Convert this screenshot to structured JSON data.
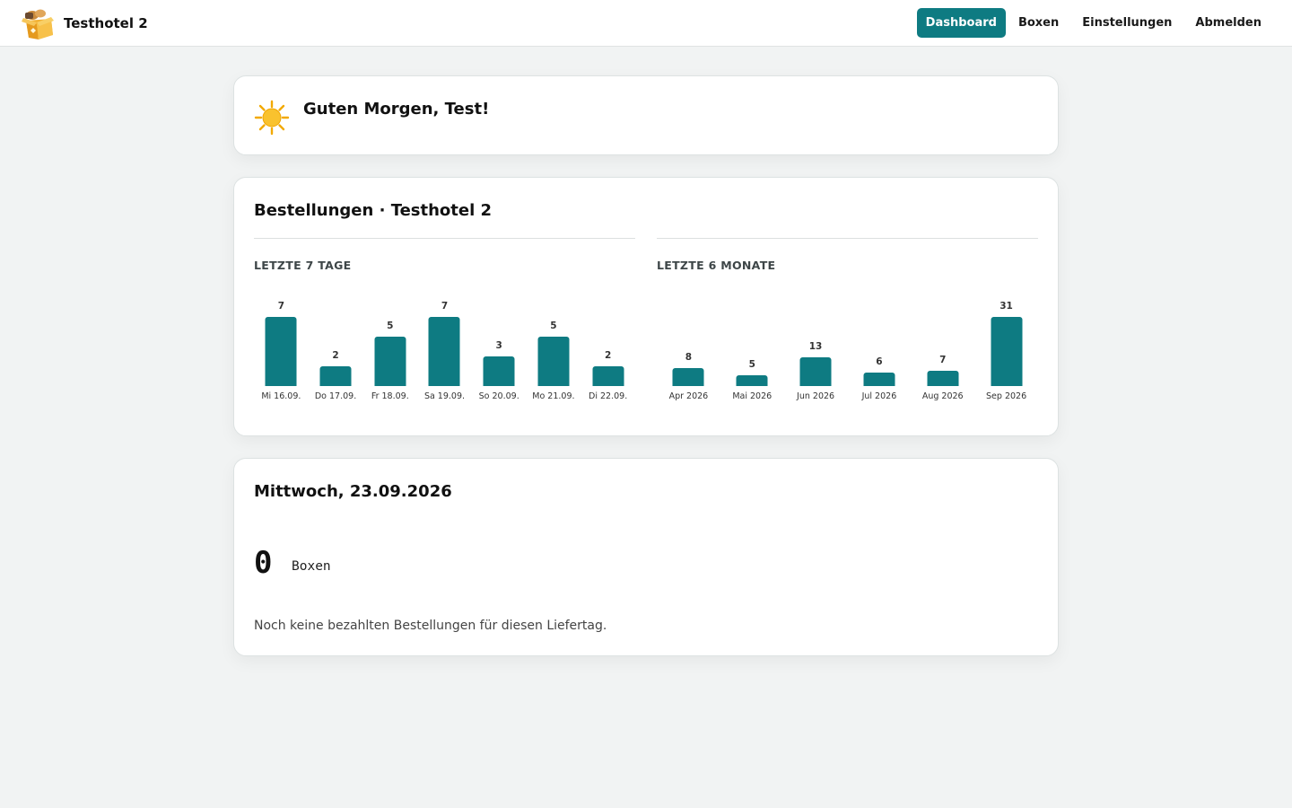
{
  "header": {
    "hotel_name": "Testhotel 2",
    "logo_icon": "box-with-bread-icon",
    "nav": [
      {
        "label": "Dashboard",
        "active": true
      },
      {
        "label": "Boxen",
        "active": false
      },
      {
        "label": "Einstellungen",
        "active": false
      },
      {
        "label": "Abmelden",
        "active": false
      }
    ],
    "accent_color": "#0e7b82"
  },
  "greeting": {
    "icon": "sun-icon",
    "text": "Guten Morgen, Test!"
  },
  "orders": {
    "title": "Bestellungen · Testhotel 2",
    "last7": {
      "label": "LETZTE 7 TAGE"
    },
    "last6": {
      "label": "LETZTE 6 MONATE"
    }
  },
  "chart_data": [
    {
      "type": "bar",
      "title": "LETZTE 7 TAGE",
      "categories": [
        "Mi 16.09.",
        "Do 17.09.",
        "Fr 18.09.",
        "Sa 19.09.",
        "So 20.09.",
        "Mo 21.09.",
        "Di 22.09."
      ],
      "values": [
        7,
        2,
        5,
        7,
        3,
        5,
        2
      ],
      "grid": false,
      "legend": "none",
      "color": "#0e7b82"
    },
    {
      "type": "bar",
      "title": "LETZTE 6 MONATE",
      "categories": [
        "Apr 2026",
        "Mai 2026",
        "Jun 2026",
        "Jul 2026",
        "Aug 2026",
        "Sep 2026"
      ],
      "values": [
        8,
        5,
        13,
        6,
        7,
        31
      ],
      "grid": false,
      "legend": "none",
      "color": "#0e7b82"
    }
  ],
  "day": {
    "title": "Mittwoch, 23.09.2026",
    "count": "0",
    "unit": "Boxen",
    "note": "Noch keine bezahlten Bestellungen für diesen Liefertag."
  }
}
